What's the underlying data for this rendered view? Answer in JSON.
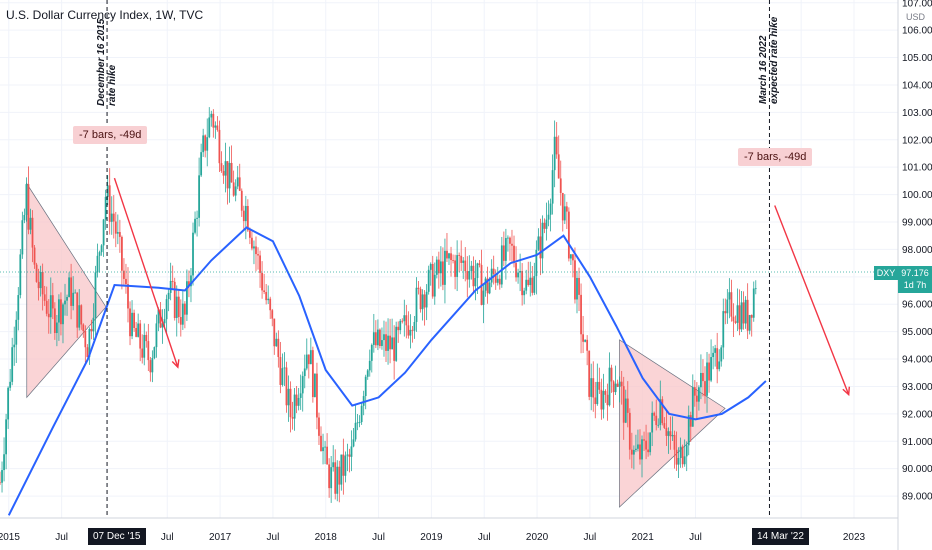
{
  "header": {
    "title": "U.S. Dollar Currency Index, 1W, TVC"
  },
  "currency_label": "USD",
  "annotations": {
    "event_left": {
      "line1": "December 16 2015",
      "line2": "rate hike"
    },
    "event_right": {
      "line1": "March 16 2022",
      "line2": "expected rate hike"
    },
    "range_left": "-7 bars, -49d",
    "range_right": "-7 bars, -49d"
  },
  "price_badge": {
    "symbol": "DXY",
    "price": "97.176",
    "countdown": "1d 7h"
  },
  "x_badges": {
    "left": "07 Dec '15",
    "right": "14 Mar '22"
  },
  "colors": {
    "up": "#26a69a",
    "down": "#ef5350",
    "ma": "#2962ff",
    "arrow": "#f23645",
    "triangle": "#f8c5c8",
    "badge": "#26a69a"
  },
  "chart_data": {
    "type": "candlestick",
    "title": "U.S. Dollar Currency Index, 1W, TVC",
    "ylim": [
      88.2,
      107.1
    ],
    "xlim": [
      "2014-12",
      "2023-06"
    ],
    "y_ticks": [
      "107.000",
      "106.000",
      "105.000",
      "104.000",
      "103.000",
      "102.000",
      "101.000",
      "100.000",
      "99.000",
      "98.000",
      "97.000",
      "96.000",
      "95.000",
      "94.000",
      "93.000",
      "92.000",
      "91.000",
      "90.000",
      "89.000"
    ],
    "x_ticks": [
      "2015",
      "Jul",
      "Jul",
      "2017",
      "Jul",
      "2018",
      "Jul",
      "2019",
      "Jul",
      "2020",
      "Jul",
      "2021",
      "Jul",
      "Jul",
      "2023"
    ],
    "price_path": {
      "dates": [
        "2014-12",
        "2015-03",
        "2015-04",
        "2015-06",
        "2015-08",
        "2015-10",
        "2015-12",
        "2016-01",
        "2016-03",
        "2016-05",
        "2016-07",
        "2016-09",
        "2016-11",
        "2016-12",
        "2017-02",
        "2017-04",
        "2017-06",
        "2017-09",
        "2017-11",
        "2018-01",
        "2018-02",
        "2018-04",
        "2018-06",
        "2018-09",
        "2018-12",
        "2019-03",
        "2019-05",
        "2019-07",
        "2019-10",
        "2019-12",
        "2020-02",
        "2020-03",
        "2020-04",
        "2020-05",
        "2020-07",
        "2020-08",
        "2020-10",
        "2020-12",
        "2021-01",
        "2021-03",
        "2021-05",
        "2021-07",
        "2021-09",
        "2021-11",
        "2022-01",
        "2022-02"
      ],
      "close": [
        89.5,
        100.0,
        97.0,
        95.5,
        96.5,
        94.5,
        100.0,
        99.0,
        95.0,
        94.0,
        96.5,
        95.5,
        101.5,
        103.0,
        100.5,
        99.5,
        96.5,
        92.0,
        94.5,
        90.0,
        89.5,
        90.5,
        94.5,
        94.5,
        96.5,
        97.5,
        97.5,
        96.5,
        98.0,
        96.5,
        99.0,
        101.5,
        99.5,
        97.5,
        93.0,
        92.5,
        93.5,
        90.5,
        90.5,
        92.5,
        90.0,
        92.8,
        93.8,
        96.0,
        95.5,
        97.2
      ]
    },
    "series": [
      {
        "name": "MA",
        "dates": [
          "2015-01",
          "2015-06",
          "2015-10",
          "2016-01",
          "2016-06",
          "2016-09",
          "2016-12",
          "2017-04",
          "2017-07",
          "2017-10",
          "2018-01",
          "2018-04",
          "2018-07",
          "2018-10",
          "2019-01",
          "2019-06",
          "2019-10",
          "2020-01",
          "2020-04",
          "2020-07",
          "2020-10",
          "2021-01",
          "2021-04",
          "2021-07",
          "2021-10",
          "2022-01",
          "2022-03"
        ],
        "values": [
          88.3,
          91.5,
          94.0,
          96.7,
          96.6,
          96.5,
          97.6,
          98.8,
          98.3,
          96.3,
          93.6,
          92.3,
          92.6,
          93.5,
          94.7,
          96.5,
          97.5,
          97.8,
          98.5,
          97.0,
          95.2,
          93.3,
          92.0,
          91.8,
          92.0,
          92.6,
          93.2
        ]
      }
    ]
  }
}
